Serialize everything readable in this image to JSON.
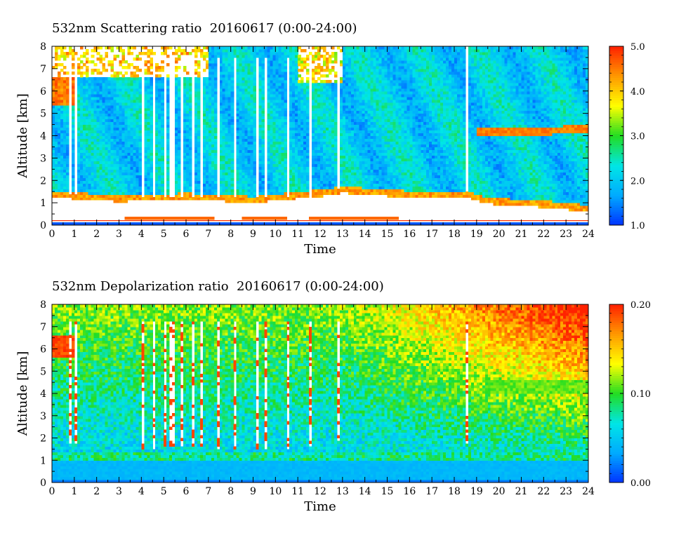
{
  "panels": [
    {
      "title": "532nm Scattering ratio  20160617 (0:00-24:00)",
      "xlabel": "Time",
      "ylabel": "Altitude [km]",
      "x_ticks": [
        "0",
        "1",
        "2",
        "3",
        "4",
        "5",
        "6",
        "7",
        "8",
        "9",
        "10",
        "11",
        "12",
        "13",
        "14",
        "15",
        "16",
        "17",
        "18",
        "19",
        "20",
        "21",
        "22",
        "23",
        "24"
      ],
      "y_ticks": [
        "0",
        "1",
        "2",
        "3",
        "4",
        "5",
        "6",
        "7",
        "8"
      ],
      "colorbar_ticks": [
        "1.0",
        "2.0",
        "3.0",
        "4.0",
        "5.0"
      ]
    },
    {
      "title": "532nm Depolarization ratio  20160617 (0:00-24:00)",
      "xlabel": "Time",
      "ylabel": "Altitude [km]",
      "x_ticks": [
        "0",
        "1",
        "2",
        "3",
        "4",
        "5",
        "6",
        "7",
        "8",
        "9",
        "10",
        "11",
        "12",
        "13",
        "14",
        "15",
        "16",
        "17",
        "18",
        "19",
        "20",
        "21",
        "22",
        "23",
        "24"
      ],
      "y_ticks": [
        "0",
        "1",
        "2",
        "3",
        "4",
        "5",
        "6",
        "7",
        "8"
      ],
      "colorbar_ticks": [
        "0.00",
        "0.10",
        "0.20"
      ]
    }
  ],
  "chart_data": [
    {
      "type": "heatmap",
      "title": "532nm Scattering ratio  20160617 (0:00-24:00)",
      "xlabel": "Time",
      "ylabel": "Altitude [km]",
      "xlim": [
        0,
        24
      ],
      "ylim": [
        0,
        8
      ],
      "colorbar": {
        "min": 1.0,
        "max": 5.0,
        "ticks": [
          1.0,
          2.0,
          3.0,
          4.0,
          5.0
        ]
      },
      "colormap": [
        "#0033ff",
        "#00aaff",
        "#00e6e6",
        "#22dd22",
        "#ffff00",
        "#ff9900",
        "#ff2200"
      ],
      "features": {
        "surface_line_altitude_km": 0.2,
        "low_layer_top_km": [
          [
            0,
            1.4
          ],
          [
            3,
            1.2
          ],
          [
            6,
            1.3
          ],
          [
            9,
            1.15
          ],
          [
            12,
            1.45
          ],
          [
            13,
            1.6
          ],
          [
            16,
            1.4
          ],
          [
            18.5,
            1.4
          ],
          [
            19.5,
            1.1
          ],
          [
            22,
            0.95
          ],
          [
            24,
            0.75
          ]
        ],
        "upper_cloud_layer": {
          "x_start": 19.0,
          "x_end": 24.0,
          "altitude_km": 4.2,
          "value": 4.5
        }
      }
    },
    {
      "type": "heatmap",
      "title": "532nm Depolarization ratio  20160617 (0:00-24:00)",
      "xlabel": "Time",
      "ylabel": "Altitude [km]",
      "xlim": [
        0,
        24
      ],
      "ylim": [
        0,
        8
      ],
      "colorbar": {
        "min": 0.0,
        "max": 0.2,
        "ticks": [
          0.0,
          0.1,
          0.2
        ]
      },
      "colormap": [
        "#0033ff",
        "#00aaff",
        "#00e6e6",
        "#22dd22",
        "#ffff00",
        "#ff9900",
        "#ff2200"
      ]
    }
  ]
}
